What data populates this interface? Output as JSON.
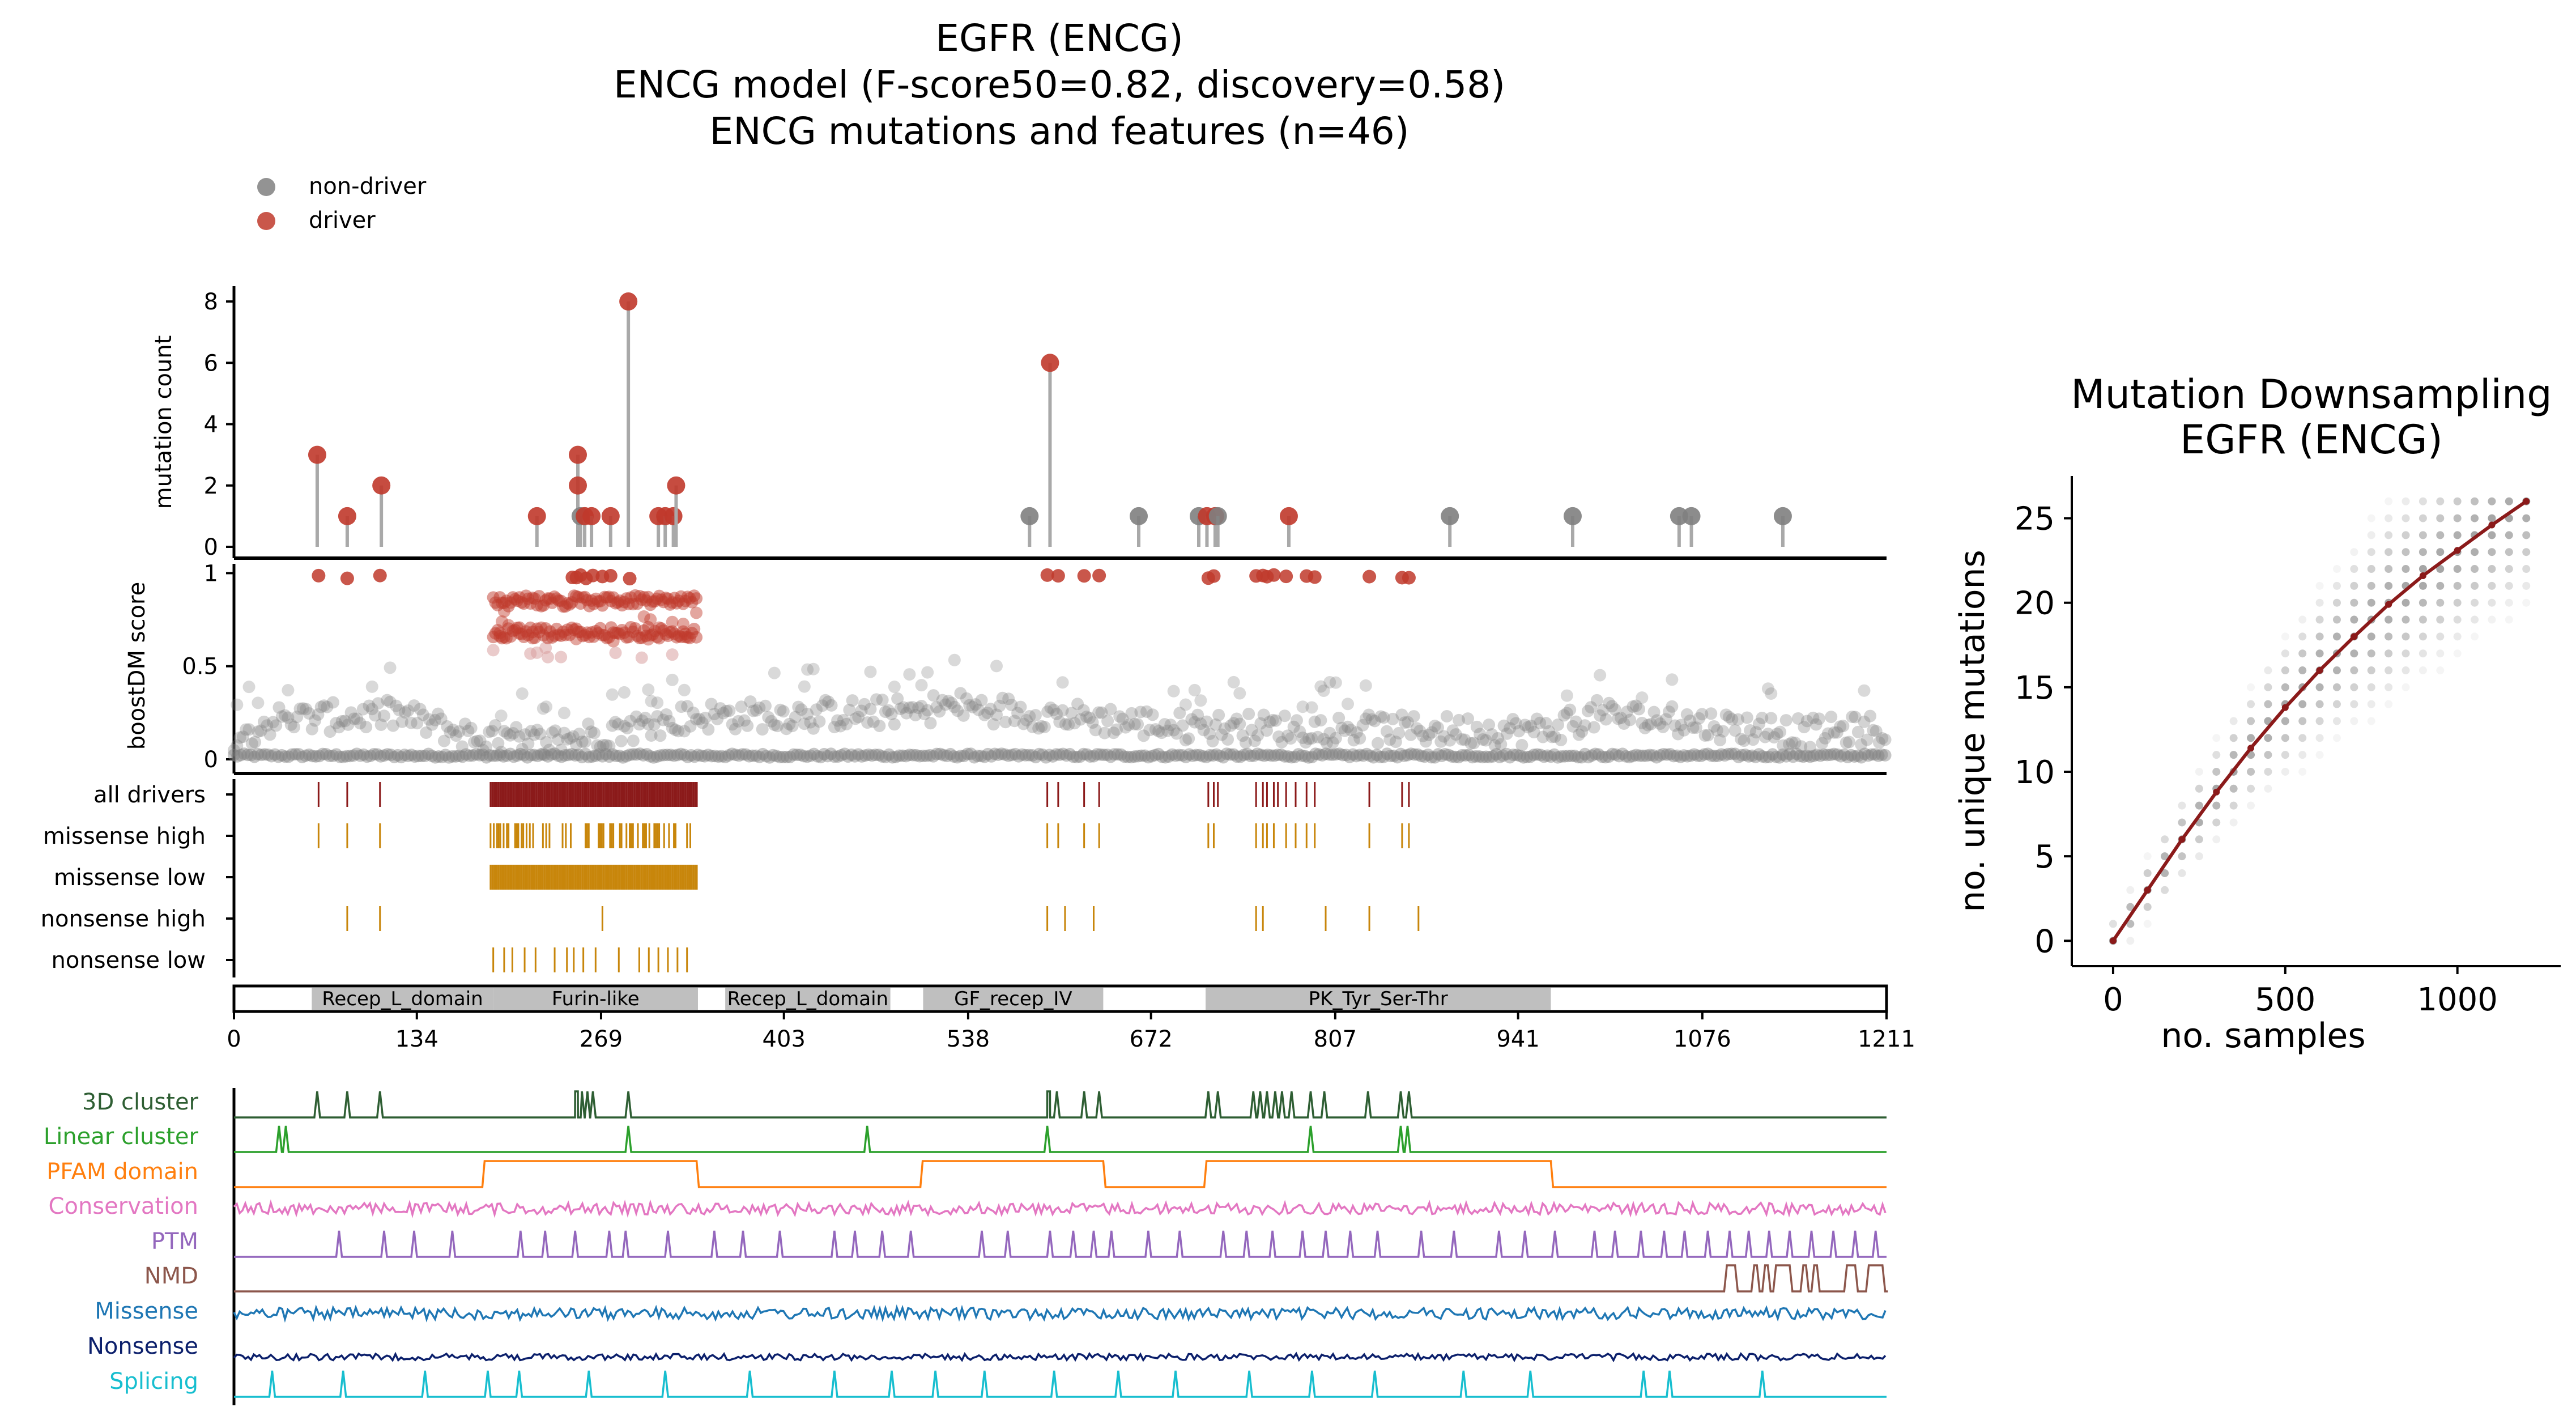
{
  "header": {
    "title_lines": [
      "EGFR (ENCG)",
      "ENCG model (F-score50=0.82, discovery=0.58)",
      "ENCG mutations and features (n=46)"
    ]
  },
  "legend": {
    "nondriver_label": "non-driver",
    "driver_label": "driver",
    "placement": "top-left"
  },
  "colors": {
    "driver": "#c0392b",
    "nondriver": "#808080",
    "stem": "#a9a9a9",
    "all_drivers": "#8b1a1a",
    "tracks_orange": "#c8860b",
    "domain_fill": "#bfbfbf",
    "fit_line": "#8b1a1a",
    "cluster3d": "#2e5e33",
    "linear": "#2ca02c",
    "pfam": "#ff7f0e",
    "conservation": "#e377c2",
    "ptm": "#9467bd",
    "nmd": "#8c564b",
    "missense": "#1f77b4",
    "nonsense": "#0b1f6b",
    "splicing": "#17becf"
  },
  "chart_data": [
    {
      "type": "lollipop",
      "ylabel": "mutation count",
      "ylim": [
        0,
        8.5
      ],
      "yticks": [
        0,
        2,
        4,
        6,
        8
      ],
      "xlim": [
        0,
        1211
      ],
      "points": [
        {
          "x": 61,
          "count": 3,
          "driver": true
        },
        {
          "x": 83,
          "count": 1,
          "driver": true
        },
        {
          "x": 108,
          "count": 2,
          "driver": true
        },
        {
          "x": 222,
          "count": 1,
          "driver": true
        },
        {
          "x": 252,
          "count": 3,
          "driver": true
        },
        {
          "x": 252,
          "count": 2,
          "driver": true
        },
        {
          "x": 254,
          "count": 1,
          "driver": false
        },
        {
          "x": 257,
          "count": 1,
          "driver": true
        },
        {
          "x": 262,
          "count": 1,
          "driver": true
        },
        {
          "x": 276,
          "count": 1,
          "driver": true
        },
        {
          "x": 289,
          "count": 8,
          "driver": true
        },
        {
          "x": 311,
          "count": 1,
          "driver": true
        },
        {
          "x": 316,
          "count": 1,
          "driver": true
        },
        {
          "x": 322,
          "count": 1,
          "driver": true
        },
        {
          "x": 324,
          "count": 2,
          "driver": true
        },
        {
          "x": 583,
          "count": 1,
          "driver": false
        },
        {
          "x": 598,
          "count": 6,
          "driver": true
        },
        {
          "x": 663,
          "count": 1,
          "driver": false
        },
        {
          "x": 707,
          "count": 1,
          "driver": false
        },
        {
          "x": 713,
          "count": 1,
          "driver": true
        },
        {
          "x": 719,
          "count": 1,
          "driver": true
        },
        {
          "x": 721,
          "count": 1,
          "driver": false
        },
        {
          "x": 773,
          "count": 1,
          "driver": true
        },
        {
          "x": 891,
          "count": 1,
          "driver": false
        },
        {
          "x": 981,
          "count": 1,
          "driver": false
        },
        {
          "x": 1059,
          "count": 1,
          "driver": false
        },
        {
          "x": 1068,
          "count": 1,
          "driver": false
        },
        {
          "x": 1135,
          "count": 1,
          "driver": false
        }
      ]
    },
    {
      "type": "scatter",
      "ylabel": "boostDM score",
      "ylim": [
        0,
        1.05
      ],
      "yticks": [
        0,
        0.5,
        1
      ],
      "xlim": [
        0,
        1211
      ],
      "driver_threshold": 0.5,
      "driver_bands": [
        {
          "from": 190,
          "to": 340,
          "levels": [
            0.85,
            0.68
          ]
        }
      ],
      "driver_top_positions": [
        62,
        83,
        107,
        248,
        251,
        254,
        258,
        263,
        270,
        276,
        290,
        596,
        604,
        623,
        634,
        714,
        718,
        749,
        754,
        757,
        762,
        771,
        786,
        792,
        832,
        856,
        861
      ],
      "background_profile": [
        {
          "x": 0,
          "y": 0.13
        },
        {
          "x": 30,
          "y": 0.22
        },
        {
          "x": 120,
          "y": 0.25
        },
        {
          "x": 180,
          "y": 0.12
        },
        {
          "x": 230,
          "y": 0.1
        },
        {
          "x": 340,
          "y": 0.24
        },
        {
          "x": 500,
          "y": 0.26
        },
        {
          "x": 520,
          "y": 0.3
        },
        {
          "x": 640,
          "y": 0.22
        },
        {
          "x": 700,
          "y": 0.18
        },
        {
          "x": 960,
          "y": 0.16
        },
        {
          "x": 1000,
          "y": 0.25
        },
        {
          "x": 1150,
          "y": 0.15
        },
        {
          "x": 1211,
          "y": 0.17
        }
      ]
    },
    {
      "type": "tracks",
      "xlim": [
        0,
        1211
      ],
      "rows": [
        {
          "label": "all drivers"
        },
        {
          "label": "missense high"
        },
        {
          "label": "missense low"
        },
        {
          "label": "nonsense high"
        },
        {
          "label": "nonsense low"
        }
      ],
      "all_drivers_sites": [
        62,
        83,
        107,
        596,
        604,
        623,
        634,
        714,
        718,
        721,
        749,
        754,
        757,
        762,
        765,
        771,
        778,
        786,
        792,
        832,
        856,
        861
      ],
      "missense_high_sites": [
        62,
        83,
        107,
        596,
        604,
        623,
        634,
        714,
        718,
        749,
        754,
        757,
        762,
        771,
        778,
        786,
        792,
        832,
        856,
        861
      ],
      "nonsense_high_sites": [
        83,
        107,
        270,
        596,
        609,
        630,
        749,
        754,
        800,
        832,
        868
      ],
      "nonsense_low_sites": [
        190,
        198,
        204,
        213,
        221,
        235,
        244,
        249,
        256,
        265,
        282,
        297,
        304,
        311,
        318,
        325,
        332
      ],
      "dense_range": [
        188,
        340
      ]
    },
    {
      "type": "domains",
      "xlim": [
        0,
        1211
      ],
      "xticks": [
        0,
        134,
        269,
        403,
        538,
        672,
        807,
        941,
        1076,
        1211
      ],
      "domains": [
        {
          "name": "Recep_L_domain",
          "start": 57,
          "end": 190
        },
        {
          "name": "Furin-like",
          "start": 190,
          "end": 340
        },
        {
          "name": "Recep_L_domain",
          "start": 360,
          "end": 481
        },
        {
          "name": "GF_recep_IV",
          "start": 505,
          "end": 637
        },
        {
          "name": "PK_Tyr_Ser-Thr",
          "start": 712,
          "end": 965
        }
      ]
    },
    {
      "type": "feature_tracks",
      "xlim": [
        0,
        1211
      ],
      "features": [
        {
          "label": "3D cluster",
          "kind": "spikes",
          "sites": [
            61,
            83,
            107,
            250,
            252,
            255,
            259,
            263,
            289,
            596,
            598,
            603,
            623,
            634,
            714,
            721,
            747,
            752,
            757,
            763,
            768,
            775,
            789,
            799,
            831,
            855,
            861
          ]
        },
        {
          "label": "Linear cluster",
          "kind": "spikes",
          "sites": [
            33,
            38,
            289,
            464,
            596,
            789,
            855,
            860
          ]
        },
        {
          "label": "PFAM domain",
          "kind": "steps",
          "ranges": [
            [
              182,
              339
            ],
            [
              503,
              637
            ],
            [
              711,
              965
            ]
          ]
        },
        {
          "label": "Conservation",
          "kind": "noise"
        },
        {
          "label": "PTM",
          "kind": "spikes",
          "sites": [
            77,
            110,
            132,
            160,
            210,
            228,
            250,
            275,
            287,
            318,
            352,
            373,
            400,
            440,
            455,
            475,
            496,
            548,
            567,
            598,
            615,
            630,
            643,
            670,
            693,
            725,
            742,
            761,
            783,
            800,
            818,
            838,
            870,
            894,
            927,
            946,
            968,
            997,
            1012,
            1031,
            1048,
            1063,
            1080,
            1096,
            1110,
            1125,
            1140,
            1156,
            1172,
            1188,
            1203
          ]
        },
        {
          "label": "NMD",
          "kind": "dense_spikes",
          "range": [
            1090,
            1211
          ]
        },
        {
          "label": "Missense",
          "kind": "noise"
        },
        {
          "label": "Nonsense",
          "kind": "noise_low"
        },
        {
          "label": "Splicing",
          "kind": "spikes",
          "sites": [
            28,
            80,
            140,
            186,
            209,
            260,
            316,
            378,
            440,
            482,
            514,
            550,
            601,
            648,
            690,
            744,
            790,
            836,
            901,
            950,
            1033,
            1052,
            1120
          ]
        }
      ]
    },
    {
      "type": "scatter",
      "title": "Mutation Downsampling\nEGFR (ENCG)",
      "title_lines": [
        "Mutation Downsampling",
        "EGFR (ENCG)"
      ],
      "xlabel": "no. samples",
      "ylabel": "no. unique mutations",
      "xlim": [
        -120,
        1300
      ],
      "ylim": [
        -1.5,
        27.5
      ],
      "xticks": [
        0,
        500,
        1000
      ],
      "yticks": [
        0,
        5,
        10,
        15,
        20,
        25
      ],
      "fit_x": [
        0,
        100,
        200,
        300,
        400,
        500,
        600,
        700,
        800,
        900,
        1000,
        1100,
        1200
      ],
      "fit_y": [
        0,
        3.0,
        6.0,
        8.8,
        11.4,
        13.8,
        16.0,
        18.0,
        19.9,
        21.6,
        23.1,
        24.6,
        26.0
      ]
    }
  ]
}
